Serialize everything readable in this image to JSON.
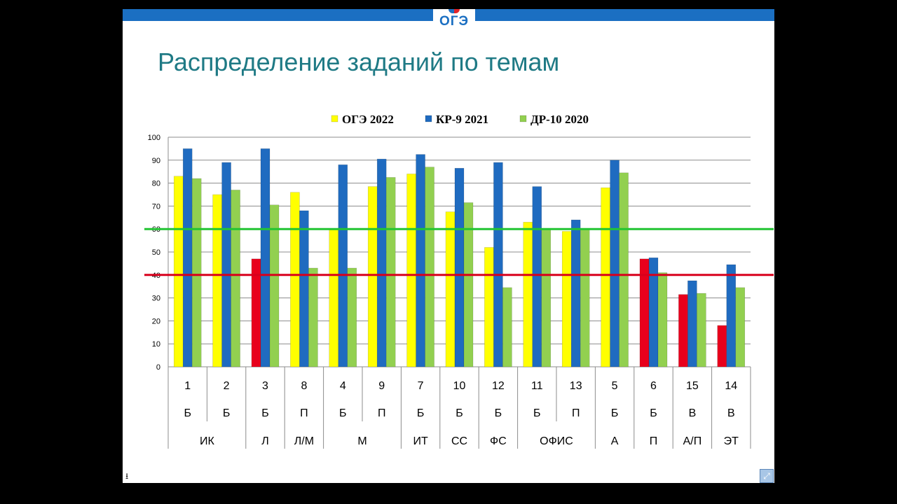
{
  "slide": {
    "logo_text": "ОГЭ",
    "title": "Распределение заданий по темам"
  },
  "icons": {
    "download": "download-icon",
    "fullscreen": "fullscreen-icon"
  },
  "chart_data": {
    "type": "bar",
    "title": "",
    "xlabel": "",
    "ylabel": "",
    "ylim": [
      0,
      100
    ],
    "yticks": [
      0,
      10,
      20,
      30,
      40,
      50,
      60,
      70,
      80,
      90,
      100
    ],
    "grid": true,
    "legend_position": "top",
    "categories": [
      "1",
      "2",
      "3",
      "8",
      "4",
      "9",
      "7",
      "10",
      "12",
      "11",
      "13",
      "5",
      "6",
      "15",
      "14"
    ],
    "levels": [
      "Б",
      "Б",
      "Б",
      "П",
      "Б",
      "П",
      "Б",
      "Б",
      "Б",
      "Б",
      "П",
      "Б",
      "Б",
      "В",
      "В"
    ],
    "groups": [
      {
        "label": "ИК",
        "span": 2
      },
      {
        "label": "Л",
        "span": 1
      },
      {
        "label": "Л/М",
        "span": 1
      },
      {
        "label": "М",
        "span": 2
      },
      {
        "label": "ИТ",
        "span": 1
      },
      {
        "label": "СС",
        "span": 1
      },
      {
        "label": "ФС",
        "span": 1
      },
      {
        "label": "ОФИС",
        "span": 2
      },
      {
        "label": "А",
        "span": 1
      },
      {
        "label": "П",
        "span": 1
      },
      {
        "label": "А/П",
        "span": 1
      },
      {
        "label": "ЭТ",
        "span": 1
      }
    ],
    "series": [
      {
        "name": "ОГЭ 2022",
        "color": "#ffff00",
        "values": [
          83,
          75,
          47,
          76,
          60,
          78.5,
          84,
          67.5,
          52,
          63,
          59,
          78,
          47,
          31.5,
          18
        ]
      },
      {
        "name": "КР-9 2021",
        "color": "#1f6bc0",
        "values": [
          95,
          89,
          95,
          68,
          88,
          90.5,
          92.5,
          86.5,
          89,
          78.5,
          64,
          90,
          47.5,
          37.5,
          44.5
        ]
      },
      {
        "name": "ДР-10 2020",
        "color": "#92d050",
        "values": [
          82,
          77,
          70.5,
          43,
          43,
          82.5,
          87,
          71.5,
          34.5,
          60,
          60,
          84.5,
          41,
          32,
          34.5
        ]
      }
    ],
    "low_value_color": "#e8001c",
    "thresholds": [
      {
        "value": 60,
        "color": "#22c433"
      },
      {
        "value": 40,
        "color": "#d8001c"
      }
    ]
  }
}
